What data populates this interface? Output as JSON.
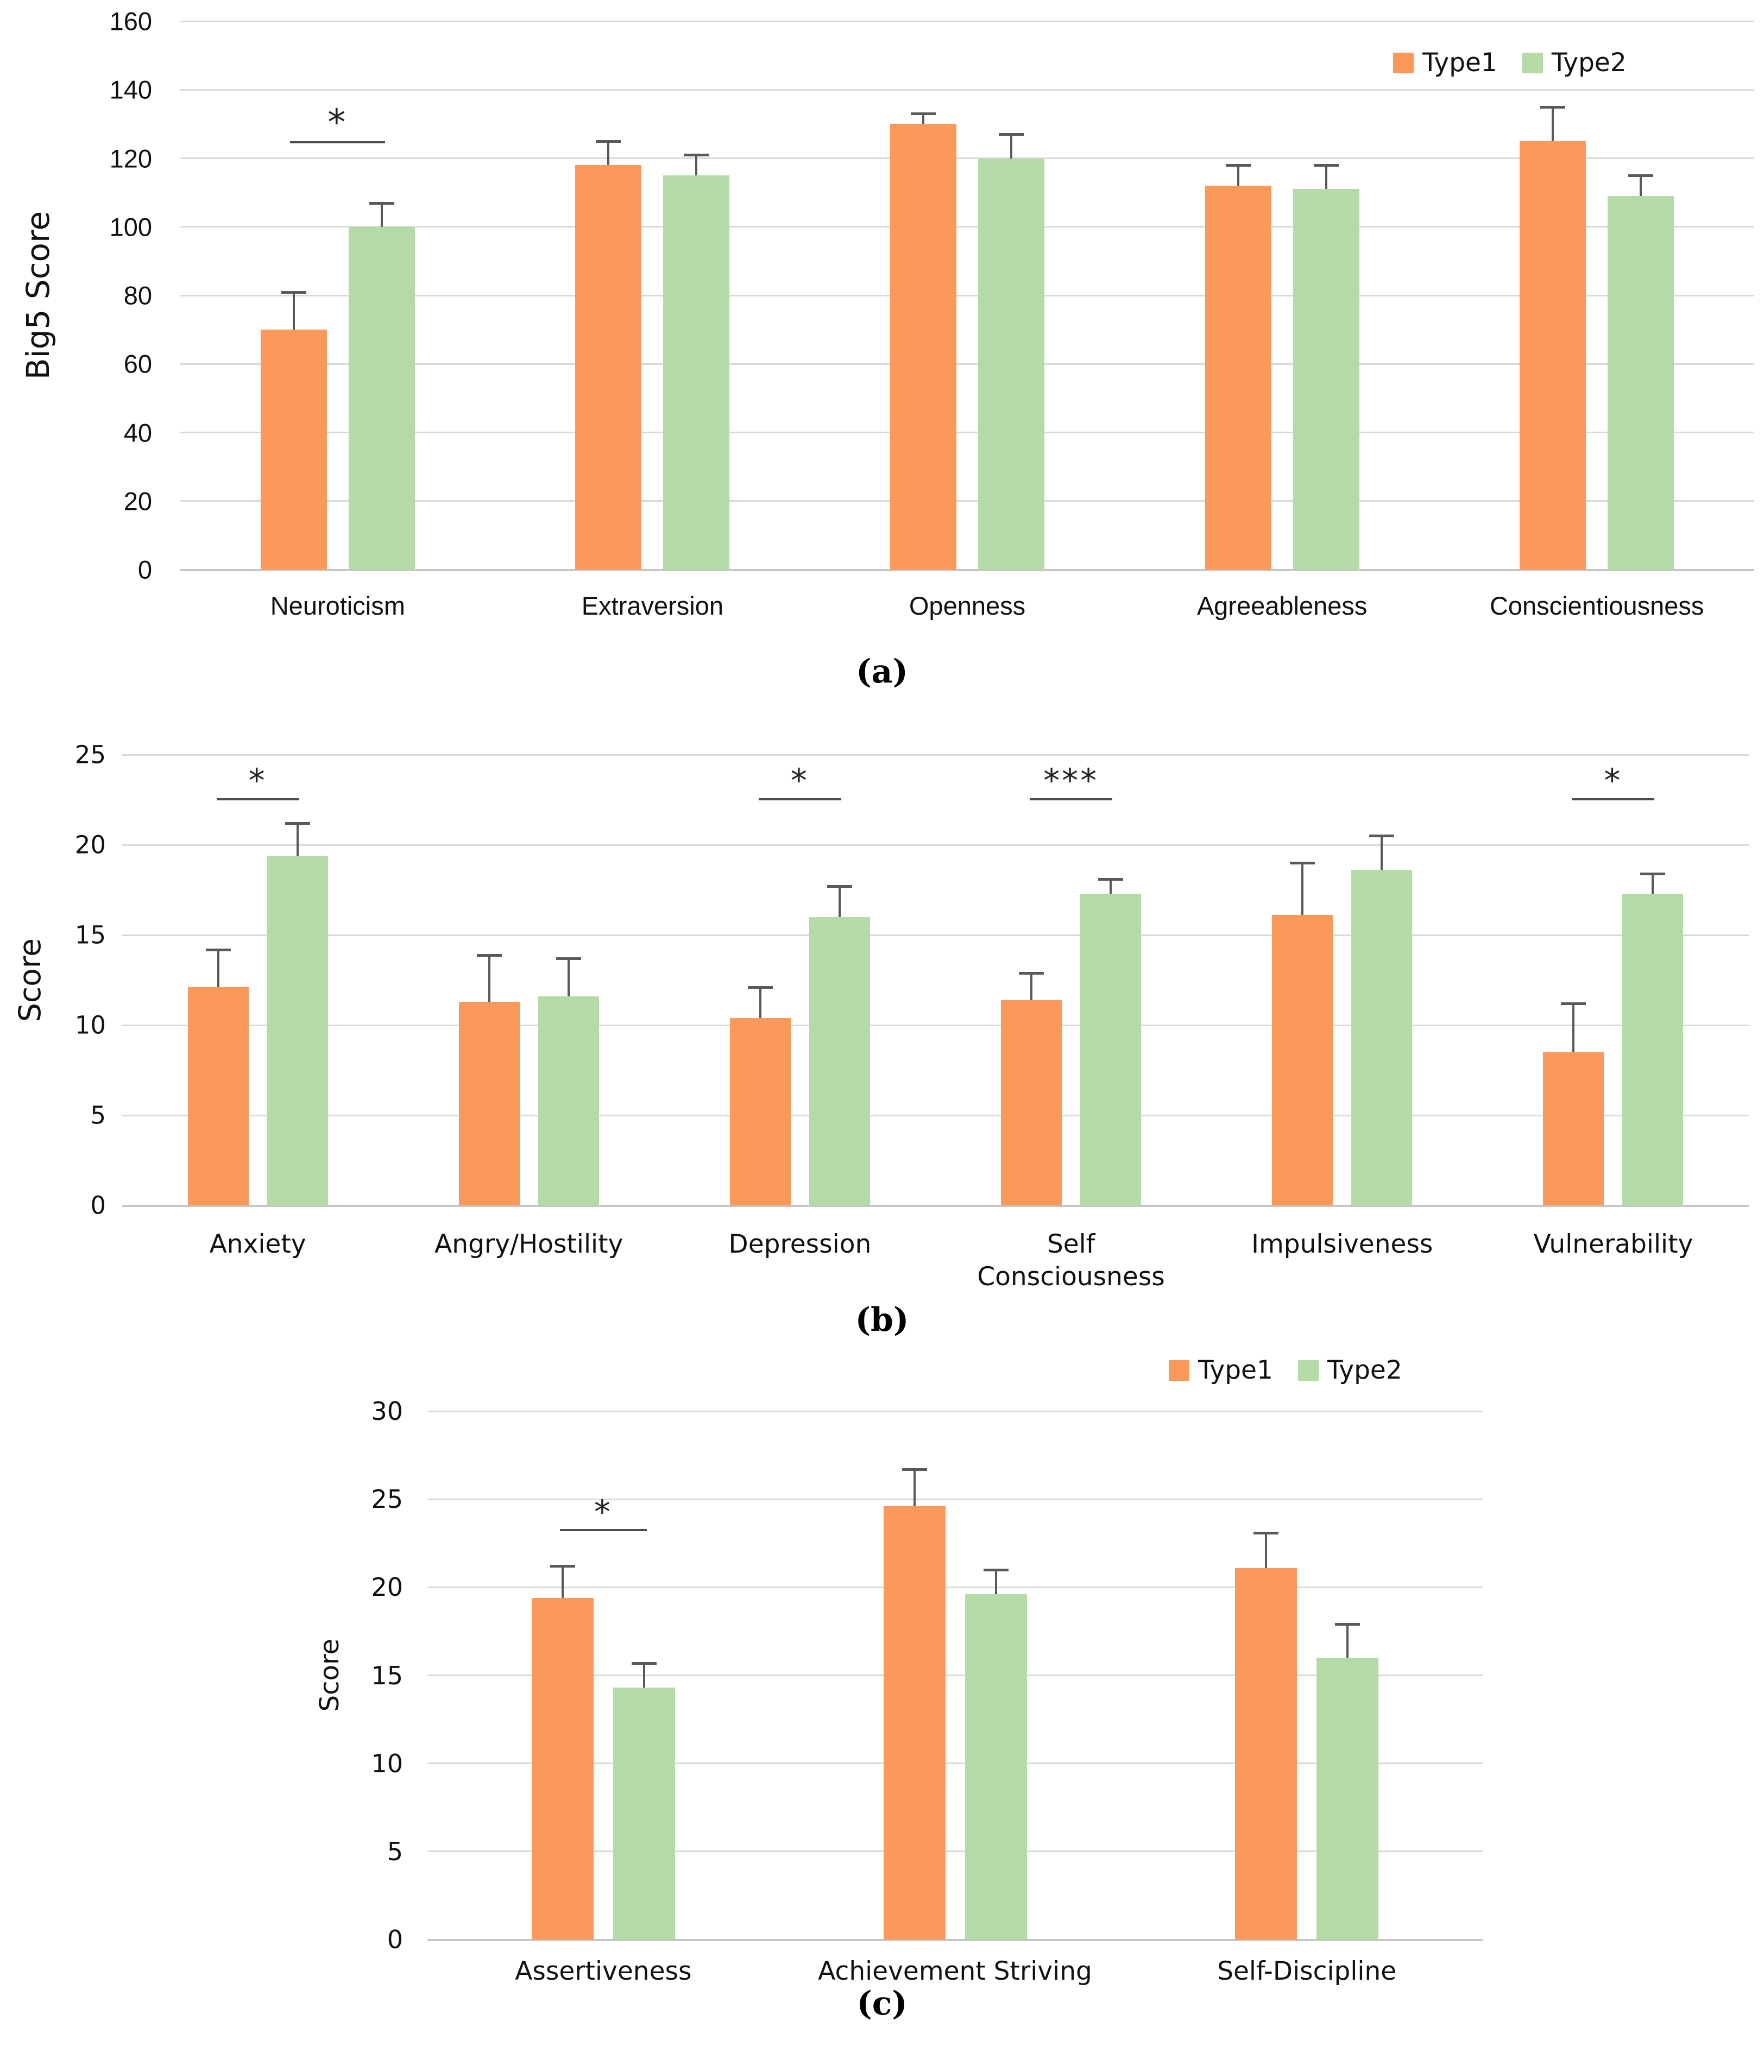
{
  "figure": {
    "legend": {
      "type1": "Type1",
      "type2": "Type2"
    },
    "captions": [
      "(a)",
      "(b)",
      "(c)"
    ],
    "colors": {
      "type1": "#FA995A",
      "type2": "#B4DBA5",
      "gridline": "#D9D9D9",
      "axis_line": "#C6C6C6",
      "error_bar": "#595959",
      "significance": "#4D4D4D",
      "text": "#1A1A1A"
    }
  },
  "chart_data": [
    {
      "type": "bar",
      "panel": "a",
      "title": "",
      "xlabel": "",
      "ylabel": "Big5 Score",
      "ylim": [
        0,
        160
      ],
      "yticks": [
        0,
        20,
        40,
        60,
        80,
        100,
        120,
        140,
        160
      ],
      "grid": true,
      "legend_position": "top-right",
      "categories": [
        "Neuroticism",
        "Extraversion",
        "Openness",
        "Agreeableness",
        "Conscientiousness"
      ],
      "series": [
        {
          "name": "Type1",
          "values": [
            70,
            118,
            130,
            112,
            125
          ],
          "errors_plus": [
            11,
            7,
            3,
            6,
            10
          ]
        },
        {
          "name": "Type2",
          "values": [
            100,
            115,
            120,
            111,
            109
          ],
          "errors_plus": [
            7,
            6,
            7,
            7,
            6
          ]
        }
      ],
      "significance": [
        {
          "category": "Neuroticism",
          "symbol": "*",
          "height": 125
        }
      ]
    },
    {
      "type": "bar",
      "panel": "b",
      "title": "",
      "xlabel": "",
      "ylabel": "Score",
      "ylim": [
        0,
        25
      ],
      "yticks": [
        0,
        5,
        10,
        15,
        20,
        25
      ],
      "grid": true,
      "legend_position": null,
      "categories": [
        "Anxiety",
        "Angry/Hostility",
        "Depression",
        "Self\nConsciousness",
        "Impulsiveness",
        "Vulnerability"
      ],
      "series": [
        {
          "name": "Type1",
          "values": [
            12.1,
            11.3,
            10.4,
            11.4,
            16.1,
            8.5
          ],
          "errors_plus": [
            2.1,
            2.6,
            1.7,
            1.5,
            2.9,
            2.7
          ]
        },
        {
          "name": "Type2",
          "values": [
            19.4,
            11.6,
            16.0,
            17.3,
            18.6,
            17.3
          ],
          "errors_plus": [
            1.8,
            2.1,
            1.7,
            0.8,
            1.9,
            1.1
          ]
        }
      ],
      "significance": [
        {
          "category": "Anxiety",
          "symbol": "*",
          "height": 22.6
        },
        {
          "category": "Depression",
          "symbol": "*",
          "height": 22.6
        },
        {
          "category": "Self\nConsciousness",
          "symbol": "***",
          "height": 22.6
        },
        {
          "category": "Vulnerability",
          "symbol": "*",
          "height": 22.6
        }
      ]
    },
    {
      "type": "bar",
      "panel": "c",
      "title": "",
      "xlabel": "",
      "ylabel": "Score",
      "ylim": [
        0,
        30
      ],
      "yticks": [
        0,
        5,
        10,
        15,
        20,
        25,
        30
      ],
      "grid": true,
      "legend_position": "top-right",
      "categories": [
        "Assertiveness",
        "Achievement Striving",
        "Self-Discipline"
      ],
      "series": [
        {
          "name": "Type1",
          "values": [
            19.4,
            24.6,
            21.1
          ],
          "errors_plus": [
            1.8,
            2.1,
            2.0
          ]
        },
        {
          "name": "Type2",
          "values": [
            14.3,
            19.6,
            16.0
          ],
          "errors_plus": [
            1.4,
            1.4,
            1.9
          ]
        }
      ],
      "significance": [
        {
          "category": "Assertiveness",
          "symbol": "*",
          "height": 23.3
        }
      ]
    }
  ]
}
